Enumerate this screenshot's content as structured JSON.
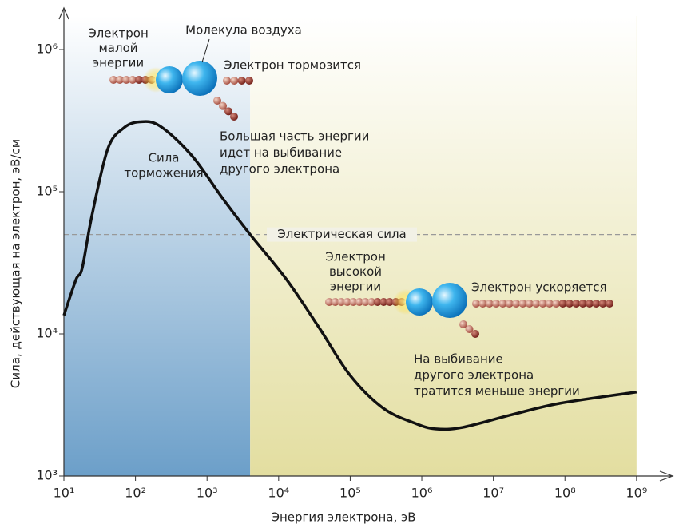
{
  "chart_data": {
    "type": "line",
    "xlog": true,
    "ylog": true,
    "xlabel": "Энергия электрона, эВ",
    "ylabel": "Сила, действующая на электрон, эВ/см",
    "x": [
      10,
      14.7,
      18,
      24.6,
      41,
      68,
      115,
      219,
      610,
      1700,
      4000,
      13000,
      37000,
      100000,
      290000,
      810000,
      1550000,
      3700000,
      18000000,
      85000000,
      1000000000
    ],
    "series": [
      {
        "name": "Сила торможения",
        "color": "#111111",
        "values": [
          13500,
          24000,
          29000,
          67700,
          200000,
          280000,
          310000,
          290000,
          180000,
          88000,
          50000,
          24000,
          11000,
          5100,
          3000,
          2350,
          2150,
          2200,
          2700,
          3250,
          3900
        ]
      }
    ],
    "curve_label": [
      "Сила",
      "торможения"
    ],
    "xlim": [
      10,
      3000000000
    ],
    "ylim": [
      1000,
      1900000
    ],
    "xticks": [
      {
        "value": 10,
        "label": "10¹"
      },
      {
        "value": 100,
        "label": "10²"
      },
      {
        "value": 1000,
        "label": "10³"
      },
      {
        "value": 10000,
        "label": "10⁴"
      },
      {
        "value": 100000,
        "label": "10⁵"
      },
      {
        "value": 1000000,
        "label": "10⁶"
      },
      {
        "value": 10000000,
        "label": "10⁷"
      },
      {
        "value": 100000000,
        "label": "10⁸"
      },
      {
        "value": 1000000000,
        "label": "10⁹"
      }
    ],
    "yticks": [
      {
        "value": 1000,
        "label": "10³"
      },
      {
        "value": 10000,
        "label": "10⁴"
      },
      {
        "value": 100000,
        "label": "10⁵"
      },
      {
        "value": 1000000,
        "label": "10⁶"
      }
    ],
    "regions": [
      {
        "from": 10,
        "to": 4000,
        "color": "#6c9fc9"
      },
      {
        "from": 4000,
        "to": 1000000000,
        "color": "#e3dea0"
      }
    ],
    "threshold": {
      "value": 50000,
      "label": "Электрическая сила",
      "color": "#999999"
    },
    "annotations": {
      "low_electron": [
        "Электрон",
        "малой",
        "энергии"
      ],
      "molecule": "Молекула воздуха",
      "slows": "Электрон тормозится",
      "low_note": [
        "Большая часть энергии",
        "идет на выбивание",
        "другого электрона"
      ],
      "high_electron": [
        "Электрон",
        "высокой",
        "энергии"
      ],
      "accelerates": "Электрон ускоряется",
      "high_note": [
        "На выбивание",
        "другого электрона",
        "тратится меньше энергии"
      ]
    }
  }
}
